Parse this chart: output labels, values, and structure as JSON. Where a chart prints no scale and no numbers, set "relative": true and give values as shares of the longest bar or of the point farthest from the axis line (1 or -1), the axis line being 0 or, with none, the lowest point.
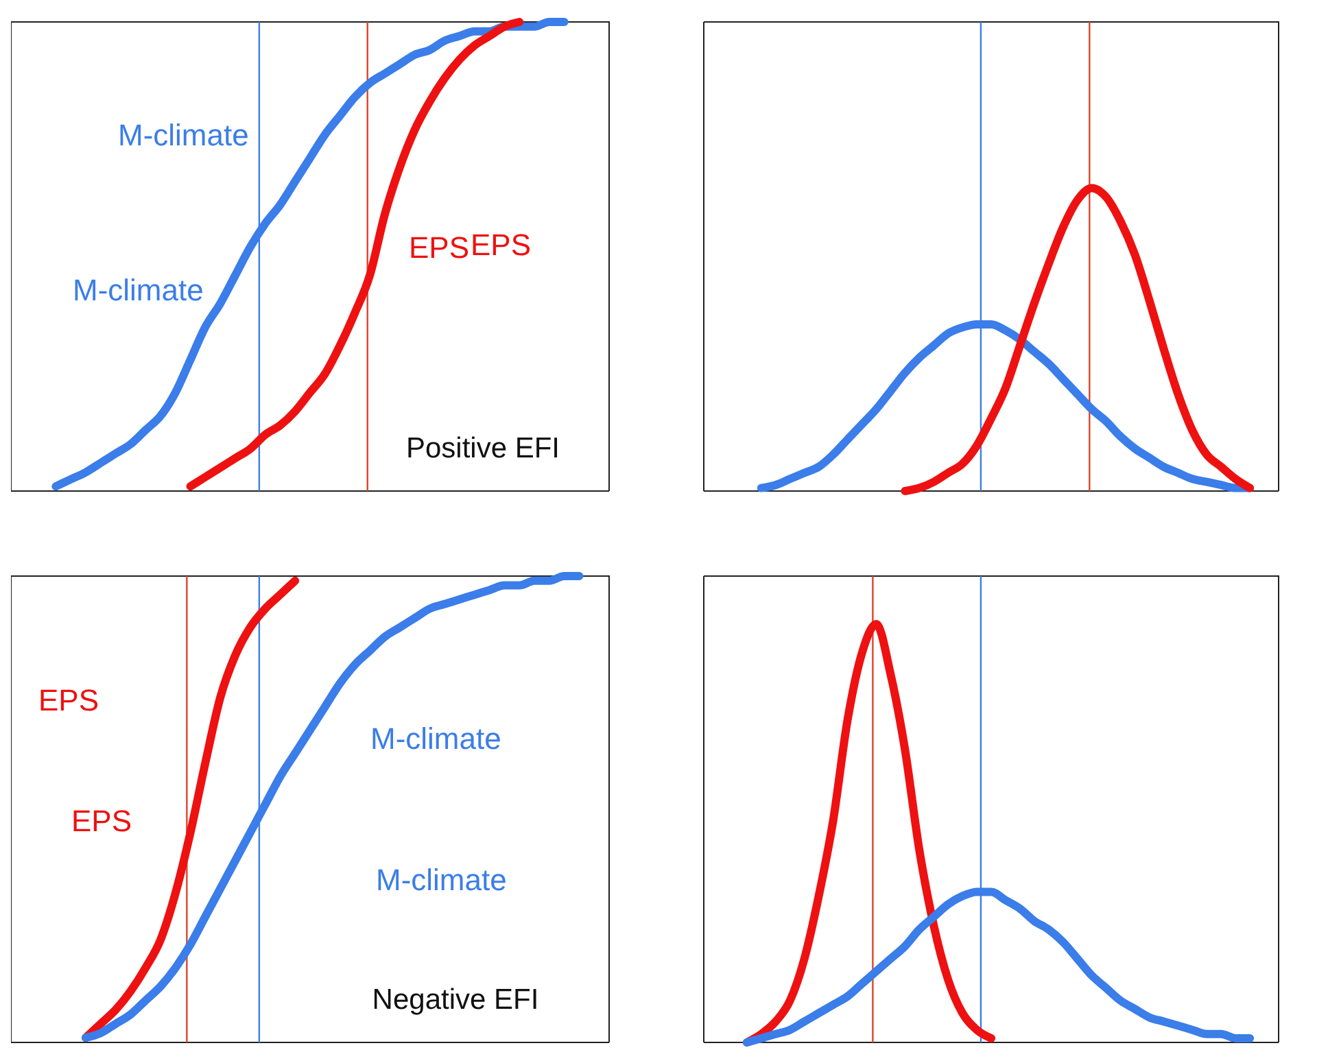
{
  "chart_data": [
    {
      "type": "line",
      "relative": true,
      "annotations": [
        "Positive EFI"
      ],
      "categories": [
        null,
        null,
        null,
        null,
        null,
        null,
        null,
        null,
        null,
        null,
        null,
        null,
        null,
        null,
        null,
        null,
        null,
        null,
        null,
        null,
        null,
        null,
        null,
        null,
        null,
        null,
        null,
        null,
        null,
        null,
        null,
        null,
        null,
        null,
        null,
        null,
        null,
        null,
        null,
        null,
        null
      ],
      "series": [
        {
          "name": "M-climate",
          "color": "#3b7de9",
          "values": [
            null,
            null,
            null,
            0.01,
            0.025,
            0.04,
            0.06,
            0.08,
            0.1,
            0.13,
            0.16,
            0.21,
            0.28,
            0.35,
            0.4,
            0.46,
            0.52,
            0.57,
            0.61,
            0.66,
            0.71,
            0.76,
            0.8,
            0.84,
            0.87,
            0.89,
            0.91,
            0.93,
            0.94,
            0.96,
            0.97,
            0.98,
            0.98,
            0.99,
            0.99,
            0.99,
            1.0,
            1.0,
            null,
            null,
            null
          ]
        },
        {
          "name": "EPS",
          "color": "#ee1111",
          "values": [
            null,
            null,
            null,
            null,
            null,
            null,
            null,
            null,
            null,
            null,
            null,
            null,
            0.01,
            0.03,
            0.05,
            0.07,
            0.09,
            0.12,
            0.14,
            0.17,
            0.21,
            0.25,
            0.31,
            0.38,
            0.46,
            0.59,
            0.69,
            0.77,
            0.83,
            0.88,
            0.92,
            0.95,
            0.97,
            0.99,
            1.0,
            null,
            null,
            null,
            null,
            null,
            null
          ]
        }
      ]
    },
    {
      "type": "line",
      "relative": true,
      "categories": [
        null,
        null,
        null,
        null,
        null,
        null,
        null,
        null,
        null,
        null,
        null,
        null,
        null,
        null,
        null,
        null,
        null,
        null,
        null,
        null,
        null,
        null,
        null,
        null,
        null,
        null,
        null,
        null,
        null,
        null,
        null,
        null,
        null,
        null,
        null,
        null,
        null,
        null,
        null,
        null,
        null
      ],
      "series": [
        {
          "name": "M-climate",
          "color": "#3b7de9",
          "values": [
            null,
            null,
            null,
            null,
            0.01,
            0.02,
            0.04,
            0.06,
            0.08,
            0.12,
            0.17,
            0.22,
            0.27,
            0.33,
            0.39,
            0.44,
            0.48,
            0.52,
            0.54,
            0.55,
            0.55,
            0.53,
            0.5,
            0.46,
            0.42,
            0.37,
            0.32,
            0.27,
            0.23,
            0.18,
            0.14,
            0.11,
            0.08,
            0.06,
            0.04,
            0.03,
            0.02,
            0.01,
            0.01,
            null,
            null
          ]
        },
        {
          "name": "EPS",
          "color": "#ee1111",
          "values": [
            null,
            null,
            null,
            null,
            null,
            null,
            null,
            null,
            null,
            null,
            null,
            null,
            null,
            null,
            0,
            0.01,
            0.03,
            0.06,
            0.09,
            0.15,
            0.24,
            0.34,
            0.48,
            0.62,
            0.75,
            0.87,
            0.96,
            1.0,
            0.97,
            0.89,
            0.78,
            0.63,
            0.47,
            0.32,
            0.2,
            0.12,
            0.08,
            0.04,
            0.01,
            null,
            null
          ]
        }
      ]
    },
    {
      "type": "line",
      "relative": true,
      "annotations": [
        "Negative EFI"
      ],
      "categories": [
        null,
        null,
        null,
        null,
        null,
        null,
        null,
        null,
        null,
        null,
        null,
        null,
        null,
        null,
        null,
        null,
        null,
        null,
        null,
        null,
        null,
        null,
        null,
        null,
        null,
        null,
        null,
        null,
        null,
        null,
        null,
        null,
        null,
        null,
        null,
        null,
        null,
        null,
        null,
        null,
        null
      ],
      "series": [
        {
          "name": "EPS",
          "color": "#ee1111",
          "values": [
            null,
            null,
            null,
            null,
            null,
            0.01,
            0.04,
            0.07,
            0.11,
            0.16,
            0.22,
            0.32,
            0.45,
            0.6,
            0.74,
            0.83,
            0.89,
            0.93,
            0.96,
            0.99,
            null,
            null,
            null,
            null,
            null,
            null,
            null,
            null,
            null,
            null,
            null,
            null,
            null,
            null,
            null,
            null,
            null,
            null,
            null,
            null,
            null
          ]
        },
        {
          "name": "M-climate",
          "color": "#3b7de9",
          "values": [
            null,
            null,
            null,
            null,
            null,
            0.01,
            0.02,
            0.04,
            0.06,
            0.09,
            0.12,
            0.16,
            0.21,
            0.27,
            0.33,
            0.39,
            0.45,
            0.51,
            0.57,
            0.62,
            0.67,
            0.72,
            0.77,
            0.81,
            0.84,
            0.87,
            0.89,
            0.91,
            0.93,
            0.94,
            0.95,
            0.96,
            0.97,
            0.98,
            0.98,
            0.99,
            0.99,
            1.0,
            1.0,
            null,
            null
          ]
        }
      ]
    },
    {
      "type": "line",
      "relative": true,
      "categories": [
        null,
        null,
        null,
        null,
        null,
        null,
        null,
        null,
        null,
        null,
        null,
        null,
        null,
        null,
        null,
        null,
        null,
        null,
        null,
        null,
        null,
        null,
        null,
        null,
        null,
        null,
        null,
        null,
        null,
        null,
        null,
        null,
        null,
        null,
        null,
        null,
        null,
        null,
        null,
        null,
        null
      ],
      "series": [
        {
          "name": "EPS",
          "color": "#ee1111",
          "values": [
            null,
            null,
            null,
            0,
            0.02,
            0.05,
            0.1,
            0.2,
            0.35,
            0.53,
            0.77,
            0.93,
            1.0,
            0.88,
            0.7,
            0.46,
            0.28,
            0.15,
            0.07,
            0.03,
            0.01,
            null,
            null,
            null,
            null,
            null,
            null,
            null,
            null,
            null,
            null,
            null,
            null,
            null,
            null,
            null,
            null,
            null,
            null,
            null,
            null
          ]
        },
        {
          "name": "M-climate",
          "color": "#3b7de9",
          "values": [
            null,
            null,
            null,
            0,
            0.01,
            0.02,
            0.03,
            0.05,
            0.07,
            0.09,
            0.11,
            0.14,
            0.17,
            0.2,
            0.23,
            0.27,
            0.3,
            0.33,
            0.35,
            0.36,
            0.36,
            0.34,
            0.32,
            0.29,
            0.27,
            0.24,
            0.2,
            0.16,
            0.13,
            0.1,
            0.08,
            0.06,
            0.05,
            0.04,
            0.03,
            0.02,
            0.02,
            0.01,
            0.01,
            null,
            null
          ]
        }
      ]
    }
  ]
}
